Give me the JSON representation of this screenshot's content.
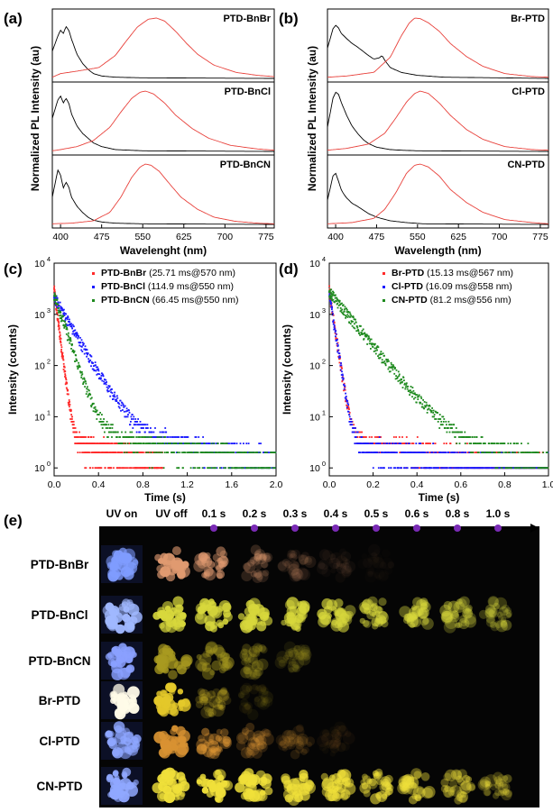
{
  "chart_data": [
    {
      "panel": "(a)",
      "type": "line",
      "xlabel": "Wavelenght (nm)",
      "ylabel": "Normalized PL Intensity (au)",
      "x_ticks": [
        "400",
        "475",
        "550",
        "625",
        "700",
        "775"
      ],
      "xlim": [
        385,
        790
      ],
      "subplots": [
        {
          "name": "PTD-BnBr",
          "series": [
            {
              "color": "#000000",
              "peaks": [
                [
                  400,
                  0.8
                ],
                [
                  410,
                  0.86
                ],
                [
                  430,
                  0.4
                ]
              ],
              "x": [
                385,
                395,
                400,
                405,
                410,
                415,
                420,
                430,
                440,
                450,
                460,
                475,
                500,
                550,
                790
              ],
              "y": [
                0.45,
                0.7,
                0.8,
                0.74,
                0.86,
                0.8,
                0.65,
                0.4,
                0.25,
                0.15,
                0.08,
                0.04,
                0.02,
                0.01,
                0.0
              ]
            },
            {
              "color": "#e8423c",
              "x": [
                385,
                400,
                430,
                470,
                500,
                520,
                540,
                560,
                575,
                590,
                610,
                630,
                650,
                680,
                720,
                760,
                790
              ],
              "y": [
                0.02,
                0.08,
                0.12,
                0.18,
                0.38,
                0.62,
                0.85,
                0.98,
                1.0,
                0.95,
                0.78,
                0.58,
                0.4,
                0.22,
                0.1,
                0.05,
                0.03
              ]
            }
          ]
        },
        {
          "name": "PTD-BnCl",
          "series": [
            {
              "color": "#000000",
              "x": [
                385,
                395,
                400,
                405,
                410,
                415,
                420,
                430,
                440,
                450,
                460,
                475,
                500,
                550,
                790
              ],
              "y": [
                0.55,
                0.85,
                0.92,
                0.8,
                0.88,
                0.8,
                0.62,
                0.42,
                0.3,
                0.22,
                0.14,
                0.08,
                0.03,
                0.01,
                0.0
              ]
            },
            {
              "color": "#e8423c",
              "x": [
                385,
                400,
                430,
                460,
                490,
                510,
                530,
                545,
                555,
                570,
                590,
                610,
                640,
                670,
                710,
                760,
                790
              ],
              "y": [
                0.01,
                0.03,
                0.08,
                0.18,
                0.4,
                0.65,
                0.88,
                0.98,
                1.0,
                0.95,
                0.8,
                0.6,
                0.38,
                0.22,
                0.1,
                0.04,
                0.02
              ]
            }
          ]
        },
        {
          "name": "PTD-BnCN",
          "series": [
            {
              "color": "#000000",
              "x": [
                385,
                395,
                400,
                405,
                410,
                415,
                420,
                430,
                440,
                450,
                460,
                475,
                500,
                550,
                790
              ],
              "y": [
                0.45,
                0.9,
                0.82,
                0.6,
                0.7,
                0.62,
                0.45,
                0.3,
                0.2,
                0.12,
                0.07,
                0.04,
                0.02,
                0.01,
                0.0
              ]
            },
            {
              "color": "#e8423c",
              "x": [
                385,
                420,
                460,
                490,
                510,
                530,
                545,
                555,
                565,
                580,
                600,
                620,
                650,
                680,
                720,
                760,
                790
              ],
              "y": [
                0.01,
                0.02,
                0.06,
                0.2,
                0.45,
                0.78,
                0.95,
                1.0,
                0.98,
                0.88,
                0.66,
                0.45,
                0.25,
                0.12,
                0.05,
                0.02,
                0.01
              ]
            }
          ]
        }
      ]
    },
    {
      "panel": "(b)",
      "type": "line",
      "xlabel": "Wavelength (nm)",
      "ylabel": "Normalized PL Intensity (au)",
      "x_ticks": [
        "400",
        "475",
        "550",
        "625",
        "700",
        "775"
      ],
      "xlim": [
        385,
        790
      ],
      "subplots": [
        {
          "name": "Br-PTD",
          "series": [
            {
              "color": "#000000",
              "x": [
                385,
                395,
                400,
                405,
                410,
                420,
                430,
                440,
                450,
                460,
                470,
                480,
                485,
                490,
                500,
                520,
                550,
                600,
                790
              ],
              "y": [
                0.5,
                0.82,
                0.88,
                0.84,
                0.75,
                0.66,
                0.58,
                0.52,
                0.45,
                0.38,
                0.32,
                0.34,
                0.38,
                0.3,
                0.18,
                0.1,
                0.05,
                0.02,
                0.0
              ]
            },
            {
              "color": "#e8423c",
              "x": [
                385,
                420,
                470,
                500,
                520,
                535,
                545,
                555,
                570,
                590,
                610,
                640,
                670,
                710,
                760,
                790
              ],
              "y": [
                0.02,
                0.04,
                0.1,
                0.35,
                0.7,
                0.92,
                1.0,
                0.99,
                0.92,
                0.78,
                0.58,
                0.36,
                0.2,
                0.08,
                0.03,
                0.02
              ]
            }
          ]
        },
        {
          "name": "Cl-PTD",
          "series": [
            {
              "color": "#000000",
              "x": [
                385,
                395,
                400,
                405,
                410,
                420,
                430,
                440,
                450,
                460,
                475,
                500,
                520,
                550,
                790
              ],
              "y": [
                0.4,
                0.88,
                0.98,
                0.95,
                0.82,
                0.6,
                0.42,
                0.3,
                0.2,
                0.13,
                0.07,
                0.03,
                0.02,
                0.01,
                0.0
              ]
            },
            {
              "color": "#e8423c",
              "x": [
                385,
                420,
                460,
                490,
                510,
                530,
                545,
                555,
                570,
                590,
                610,
                640,
                670,
                710,
                760,
                790
              ],
              "y": [
                0.02,
                0.05,
                0.12,
                0.3,
                0.55,
                0.82,
                0.96,
                1.0,
                0.96,
                0.8,
                0.6,
                0.36,
                0.2,
                0.08,
                0.03,
                0.02
              ]
            }
          ]
        },
        {
          "name": "CN-PTD",
          "series": [
            {
              "color": "#000000",
              "x": [
                385,
                395,
                400,
                405,
                410,
                415,
                420,
                430,
                440,
                450,
                460,
                475,
                500,
                530,
                560,
                790
              ],
              "y": [
                0.4,
                0.8,
                0.85,
                0.72,
                0.58,
                0.5,
                0.44,
                0.35,
                0.3,
                0.24,
                0.18,
                0.12,
                0.06,
                0.03,
                0.01,
                0.0
              ]
            },
            {
              "color": "#e8423c",
              "x": [
                385,
                430,
                470,
                490,
                510,
                530,
                545,
                555,
                570,
                590,
                610,
                640,
                670,
                710,
                760,
                790
              ],
              "y": [
                0.01,
                0.03,
                0.1,
                0.25,
                0.52,
                0.85,
                0.98,
                1.0,
                0.95,
                0.8,
                0.58,
                0.36,
                0.2,
                0.08,
                0.03,
                0.01
              ]
            }
          ]
        }
      ]
    },
    {
      "panel": "(c)",
      "type": "scatter",
      "xlabel": "Time (s)",
      "ylabel": "Intensity (counts)",
      "x_ticks": [
        "0.0",
        "0.4",
        "0.8",
        "1.2",
        "1.6",
        "2.0"
      ],
      "xlim": [
        0,
        2.0
      ],
      "ylim": [
        0.7,
        10000
      ],
      "y_scale": "log",
      "y_ticks": [
        "10^0",
        "10^1",
        "10^2",
        "10^3",
        "10^4"
      ],
      "legend": "top-right",
      "series": [
        {
          "name": "PTD-BnBr",
          "detail": "(25.71 ms@570 nm)",
          "color": "#ff2a2a",
          "tau": 0.02571,
          "A": 3000,
          "floor": 3.5,
          "tmax": 0.98
        },
        {
          "name": "PTD-BnCl",
          "detail": "(114.9 ms@550 nm)",
          "color": "#1a1aff",
          "tau": 0.1149,
          "A": 2200,
          "floor": 8.5,
          "tmax": 2.0
        },
        {
          "name": "PTD-BnCN",
          "detail": "(66.45 ms@550 nm)",
          "color": "#1e8a1e",
          "tau": 0.06645,
          "A": 2500,
          "floor": 6.5,
          "tmax": 2.0
        }
      ]
    },
    {
      "panel": "(d)",
      "type": "scatter",
      "xlabel": "Time (s)",
      "ylabel": "Intensity (counts)",
      "x_ticks": [
        "0.0",
        "0.2",
        "0.4",
        "0.6",
        "0.8",
        "1.0"
      ],
      "xlim": [
        0,
        1.0
      ],
      "ylim": [
        0.7,
        10000
      ],
      "y_scale": "log",
      "y_ticks": [
        "10^0",
        "10^1",
        "10^2",
        "10^3",
        "10^4"
      ],
      "legend": "top-right",
      "series": [
        {
          "name": "Br-PTD",
          "detail": "(15.13 ms@567 nm)",
          "color": "#ff2a2a",
          "tau": 0.01513,
          "A": 3000,
          "floor": 4.5,
          "tmax": 1.0
        },
        {
          "name": "Cl-PTD",
          "detail": "(16.09 ms@558 nm)",
          "color": "#1a1aff",
          "tau": 0.01609,
          "A": 2500,
          "floor": 3.5,
          "tmax": 1.0
        },
        {
          "name": "CN-PTD",
          "detail": "(81.2 ms@556 nm)",
          "color": "#1e8a1e",
          "tau": 0.0812,
          "A": 2800,
          "floor": 8.0,
          "tmax": 1.0
        }
      ]
    },
    {
      "panel": "(e)",
      "type": "table",
      "columns": [
        "UV on",
        "UV off",
        "0.1 s",
        "0.2 s",
        "0.3 s",
        "0.4 s",
        "0.5 s",
        "0.6 s",
        "0.8 s",
        "1.0 s"
      ],
      "rows": [
        {
          "name": "PTD-BnBr",
          "on": "#7f9cff",
          "color": "#e09a70",
          "intensity": [
            1.0,
            0.6,
            0.25,
            0.12,
            0.06,
            0.03,
            0.0,
            0.0,
            0.0
          ]
        },
        {
          "name": "PTD-BnCl",
          "on": "#a0b8ff",
          "color": "#d8d83c",
          "intensity": [
            1.0,
            0.95,
            0.9,
            0.8,
            0.7,
            0.6,
            0.55,
            0.45,
            0.32
          ]
        },
        {
          "name": "PTD-BnCN",
          "on": "#8aa0ff",
          "color": "#a89a20",
          "intensity": [
            0.9,
            0.5,
            0.3,
            0.2,
            0.0,
            0.0,
            0.0,
            0.0,
            0.0
          ]
        },
        {
          "name": "Br-PTD",
          "on": "#fffbe8",
          "color": "#e4c82a",
          "intensity": [
            1.0,
            0.25,
            0.08,
            0.0,
            0.0,
            0.0,
            0.0,
            0.0,
            0.0
          ]
        },
        {
          "name": "Cl-PTD",
          "on": "#8ea6ff",
          "color": "#d89232",
          "intensity": [
            1.0,
            0.55,
            0.28,
            0.15,
            0.06,
            0.0,
            0.0,
            0.0,
            0.0
          ]
        },
        {
          "name": "CN-PTD",
          "on": "#90a8ff",
          "color": "#f0e03a",
          "intensity": [
            1.0,
            1.0,
            0.95,
            0.85,
            0.72,
            0.62,
            0.52,
            0.42,
            0.3
          ]
        }
      ]
    }
  ]
}
